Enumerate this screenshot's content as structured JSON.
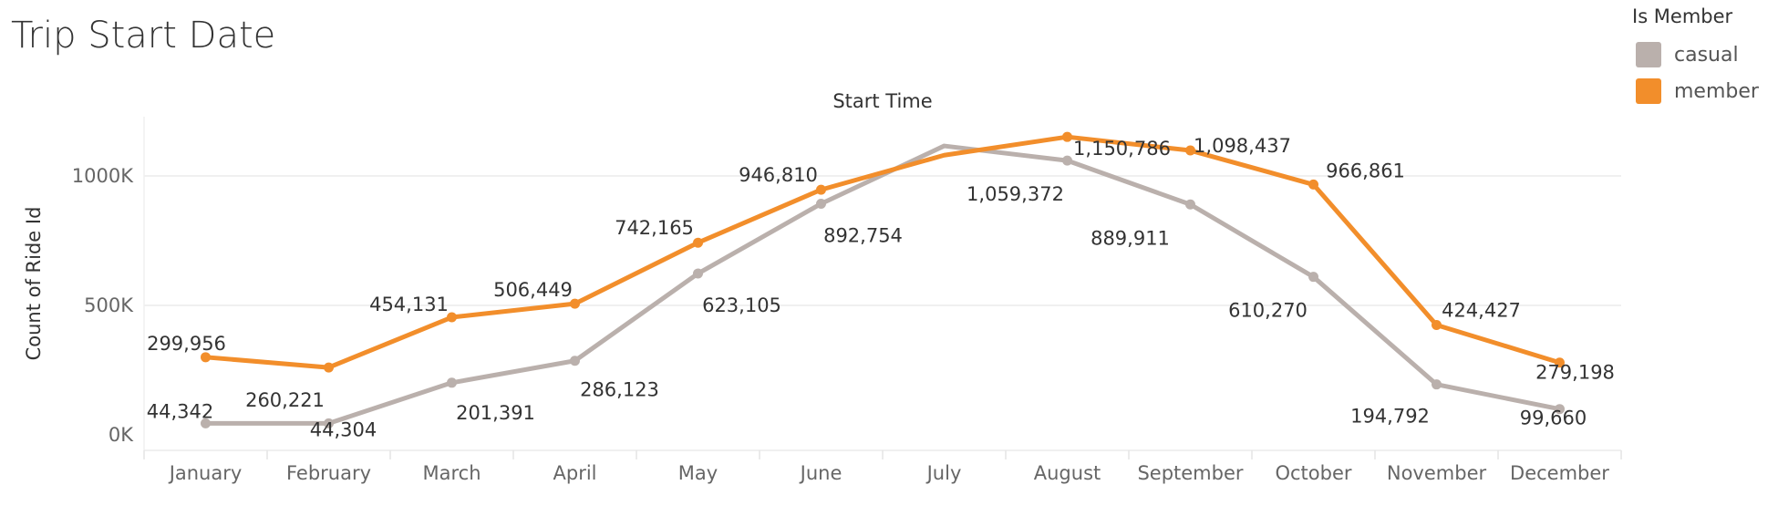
{
  "chart_title": "Trip Start Date",
  "legend": {
    "title": "Is Member",
    "items": [
      {
        "label": "casual",
        "color": "#bab0ac"
      },
      {
        "label": "member",
        "color": "#f28e2b"
      }
    ]
  },
  "chart_data": {
    "type": "line",
    "title": "Start Time",
    "xlabel": "",
    "ylabel": "Count of Ride Id",
    "categories": [
      "January",
      "February",
      "March",
      "April",
      "May",
      "June",
      "July",
      "August",
      "September",
      "October",
      "November",
      "December"
    ],
    "y_ticks": [
      {
        "value": 0,
        "label": "0K"
      },
      {
        "value": 500000,
        "label": "500K"
      },
      {
        "value": 1000000,
        "label": "1000K"
      }
    ],
    "ylim": [
      -60000,
      1220000
    ],
    "grid": true,
    "legend_position": "top-right",
    "series": [
      {
        "name": "casual",
        "color": "#bab0ac",
        "values": [
          44342,
          44304,
          201391,
          286123,
          623105,
          892754,
          1116000,
          1059372,
          889911,
          610270,
          194792,
          99660
        ],
        "labels": [
          "44,342",
          "44,304",
          "201,391",
          "286,123",
          "623,105",
          "892,754",
          "",
          "1,059,372",
          "889,911",
          "610,270",
          "194,792",
          "99,660"
        ]
      },
      {
        "name": "member",
        "color": "#f28e2b",
        "values": [
          299956,
          260221,
          454131,
          506449,
          742165,
          946810,
          1080000,
          1150786,
          1098437,
          966861,
          424427,
          279198
        ],
        "labels": [
          "299,956",
          "260,221",
          "454,131",
          "506,449",
          "742,165",
          "946,810",
          "",
          "1,150,786",
          "1,098,437",
          "966,861",
          "424,427",
          "279,198"
        ]
      }
    ]
  }
}
